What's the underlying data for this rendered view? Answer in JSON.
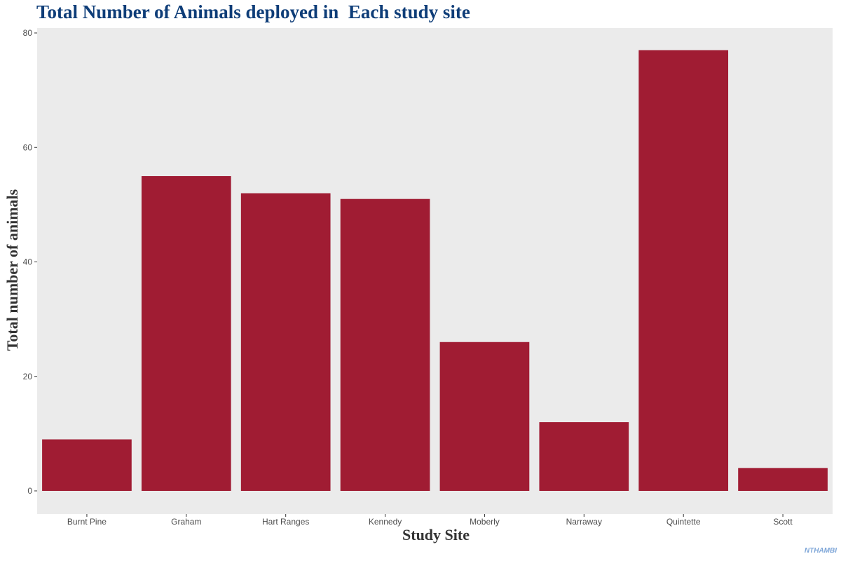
{
  "chart_data": {
    "type": "bar",
    "title": "Total Number of Animals deployed in  Each study site",
    "xlabel": "Study Site",
    "ylabel": "Total number of animals",
    "caption": "NTHAMBI",
    "categories": [
      "Burnt Pine",
      "Graham",
      "Hart Ranges",
      "Kennedy",
      "Moberly",
      "Narraway",
      "Quintette",
      "Scott"
    ],
    "values": [
      9,
      55,
      52,
      51,
      26,
      12,
      77,
      4
    ],
    "ylim": [
      0,
      80
    ],
    "yticks": [
      0,
      20,
      40,
      60,
      80
    ],
    "grid": false,
    "legend": "none",
    "colors": {
      "bar": "#a01c33",
      "panel": "#ebebeb",
      "title": "#0e3d78",
      "caption": "#7ea6d8"
    }
  }
}
